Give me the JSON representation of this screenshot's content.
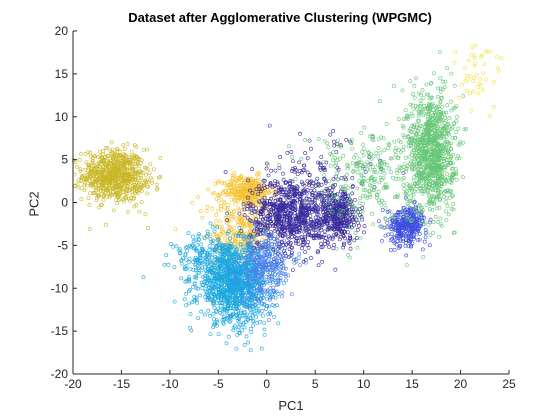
{
  "chart_data": {
    "type": "scatter",
    "title": "Dataset after Agglomerative Clustering (WPGMC)",
    "xlabel": "PC1",
    "ylabel": "PC2",
    "xlim": [
      -20,
      25
    ],
    "ylim": [
      -20,
      20
    ],
    "xticks": [
      -20,
      -15,
      -10,
      -5,
      0,
      5,
      10,
      15,
      20,
      25
    ],
    "yticks": [
      -20,
      -15,
      -10,
      -5,
      0,
      5,
      10,
      15,
      20
    ],
    "grid": false,
    "legend": false,
    "marker": "open-circle",
    "series": [
      {
        "color": "#c9b725",
        "approx_points": 700,
        "clusters": [
          {
            "cx": -15.8,
            "cy": 3.2,
            "sx": 1.6,
            "sy": 1.5,
            "n": 650
          },
          {
            "cx": -13.5,
            "cy": 1.5,
            "sx": 0.9,
            "sy": 1.5,
            "n": 50
          }
        ]
      },
      {
        "color": "#f5c434",
        "approx_points": 600,
        "clusters": [
          {
            "cx": -2.0,
            "cy": 1.3,
            "sx": 1.3,
            "sy": 0.9,
            "n": 350
          },
          {
            "cx": -2.5,
            "cy": -3.8,
            "sx": 1.5,
            "sy": 1.3,
            "n": 200
          },
          {
            "cx": -3.0,
            "cy": -1.0,
            "sx": 2.0,
            "sy": 1.0,
            "n": 50
          }
        ]
      },
      {
        "color": "#3a2c9e",
        "approx_points": 1250,
        "clusters": [
          {
            "cx": 2.5,
            "cy": -1.5,
            "sx": 2.2,
            "sy": 2.2,
            "n": 800
          },
          {
            "cx": 7.5,
            "cy": -1.5,
            "sx": 1.0,
            "sy": 1.5,
            "n": 350
          },
          {
            "cx": 5.0,
            "cy": 3.0,
            "sx": 3.0,
            "sy": 2.5,
            "n": 100
          }
        ]
      },
      {
        "color": "#1aa7df",
        "approx_points": 1250,
        "clusters": [
          {
            "cx": -3.5,
            "cy": -9.5,
            "sx": 1.8,
            "sy": 2.2,
            "n": 1000
          },
          {
            "cx": -5.5,
            "cy": -6.5,
            "sx": 2.0,
            "sy": 1.5,
            "n": 200
          },
          {
            "cx": -1.5,
            "cy": -12.0,
            "sx": 1.5,
            "sy": 1.8,
            "n": 50
          }
        ]
      },
      {
        "color": "#4a82ea",
        "approx_points": 300,
        "clusters": [
          {
            "cx": -0.5,
            "cy": -8.0,
            "sx": 1.2,
            "sy": 2.0,
            "n": 250
          },
          {
            "cx": 1.0,
            "cy": -7.0,
            "sx": 1.5,
            "sy": 1.5,
            "n": 50
          }
        ]
      },
      {
        "color": "#3f4ee0",
        "approx_points": 320,
        "clusters": [
          {
            "cx": 14.5,
            "cy": -2.5,
            "sx": 1.0,
            "sy": 1.0,
            "n": 300
          },
          {
            "cx": 14.0,
            "cy": -4.5,
            "sx": 0.6,
            "sy": 0.6,
            "n": 20
          }
        ]
      },
      {
        "color": "#66c777",
        "approx_points": 1200,
        "clusters": [
          {
            "cx": 17.0,
            "cy": 6.0,
            "sx": 1.2,
            "sy": 3.5,
            "n": 900
          },
          {
            "cx": 11.0,
            "cy": 3.0,
            "sx": 3.5,
            "sy": 3.0,
            "n": 300
          }
        ]
      },
      {
        "color": "#f5e04a",
        "approx_points": 45,
        "clusters": [
          {
            "cx": 21.5,
            "cy": 15.0,
            "sx": 1.3,
            "sy": 2.2,
            "n": 45
          }
        ]
      }
    ]
  }
}
